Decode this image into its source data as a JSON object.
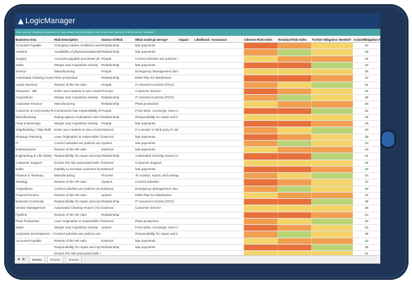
{
  "app": {
    "brand": "LogicManager"
  },
  "banner": "Use column heading comments for instructions and definitions; use drop-down options in fields where available",
  "columns": [
    "Business Area",
    "Risk Description",
    "Source of Risk",
    "What could go wrong?",
    "Impact",
    "Likelihood",
    "Assurance",
    "Inherent Risk Index",
    "Residual Risk Index",
    "Further Mitigation Needed?",
    "Action/Mitigation Plan"
  ],
  "rows": [
    {
      "area": "Accounts Payable",
      "desc": "Changing market conditions and events",
      "source": "Relationship",
      "wrong": "late payments",
      "inh": "",
      "res": "",
      "fur": "",
      "act": "42"
    },
    {
      "area": "Aviation",
      "desc": "Availability of physicians/specialists, rel",
      "source": "Relationship",
      "wrong": "late payments",
      "inh": "",
      "res": "",
      "fur": "",
      "act": "45"
    },
    {
      "area": "Surgery",
      "desc": "Accounts payable processes all invoices",
      "source": "People",
      "wrong": "Control activities are policies and proc",
      "inh": "",
      "res": "",
      "fur": "",
      "act": "46"
    },
    {
      "area": "Sales",
      "desc": "Merger and Acquisition activity",
      "source": "Relationship",
      "wrong": "late payments",
      "inh": "",
      "res": "",
      "fur": "",
      "act": "42"
    },
    {
      "area": "Service",
      "desc": "Manufacturing",
      "source": "People",
      "wrong": "Emergency Management Services (EMS)",
      "inh": "",
      "res": "",
      "fur": "",
      "act": "38"
    },
    {
      "area": "Automated Clearing House",
      "desc": "Plant production",
      "source": "Relationship",
      "wrong": "ERM Plan for Distribution",
      "inh": "",
      "res": "",
      "fur": "",
      "act": "42"
    },
    {
      "area": "Guest Services",
      "desc": "Review of the HR ratio",
      "source": "People",
      "wrong": "IT General Controls (ITGC)",
      "inh": "",
      "res": "",
      "fur": "",
      "act": "41"
    },
    {
      "area": "Resumes - DR",
      "desc": "Enter new markets in new countries",
      "source": "Process",
      "wrong": "Customer Service",
      "inh": "",
      "res": "",
      "fur": "",
      "act": "42"
    },
    {
      "area": "Acquisitions",
      "desc": "Merger and Acquisition activity",
      "source": "Relationship",
      "wrong": "IT General Controls (ITGC)",
      "inh": "",
      "res": "",
      "fur": "",
      "act": "38"
    },
    {
      "area": "Corporate Finance",
      "desc": "Manufacturing",
      "source": "Relationship",
      "wrong": "Plant production",
      "inh": "",
      "res": "",
      "fur": "",
      "act": "40"
    },
    {
      "area": "Customer & Community Rel",
      "desc": "Investments has responsibility for manag",
      "source": "People",
      "wrong": "Front desk, concierge, room service",
      "inh": "",
      "res": "",
      "fur": "",
      "act": "42"
    },
    {
      "area": "Manufacturing",
      "desc": "Rating agency evaluations and 10K/10Q",
      "source": "Relationship",
      "wrong": "Responsibility for repair and improvem",
      "inh": "",
      "res": "",
      "fur": "",
      "act": "36"
    },
    {
      "area": "Food & Beverage",
      "desc": "Merger and Acquisition activity",
      "source": "People",
      "wrong": "late payments",
      "inh": "",
      "res": "",
      "fur": "",
      "act": "33"
    },
    {
      "area": "Ship/Building / Ship Refit",
      "desc": "Enter new markets in new countries",
      "source": "External",
      "wrong": "If a vendor or third party is visiting",
      "inh": "",
      "res": "",
      "fur": "",
      "act": "40"
    },
    {
      "area": "Strategic Planning",
      "desc": "Loan Origination is responsible for under",
      "source": "External",
      "wrong": "late payments",
      "inh": "",
      "res": "",
      "fur": "",
      "act": "36"
    },
    {
      "area": "IT",
      "desc": "Control activities are policies and proce",
      "source": "System",
      "wrong": "late payments",
      "inh": "",
      "res": "",
      "fur": "",
      "act": "24"
    },
    {
      "area": "Entertainment",
      "desc": "Review of the HR ratio",
      "source": "External",
      "wrong": "late payments",
      "inh": "",
      "res": "",
      "fur": "",
      "act": "24"
    },
    {
      "area": "Engineering & Life Safety",
      "desc": "Responsibility for repair and improveme",
      "source": "Relationship",
      "wrong": "Automated Clearing House (ACH): Back",
      "inh": "",
      "res": "",
      "fur": "",
      "act": "21"
    },
    {
      "area": "Customer Support",
      "desc": "Ensure the risk associated with new bro",
      "source": "External",
      "wrong": "Customer Support",
      "inh": "",
      "res": "",
      "fur": "",
      "act": "25"
    },
    {
      "area": "Sales",
      "desc": "Inability to increase customer base and",
      "source": "External",
      "wrong": "late payments",
      "inh": "",
      "res": "",
      "fur": "",
      "act": "32"
    },
    {
      "area": "Finance & Treasury",
      "desc": "Manufacturing",
      "source": "Process",
      "wrong": "To monitor, report, and manage the ope",
      "inh": "",
      "res": "",
      "fur": "",
      "act": "24"
    },
    {
      "area": "Strategy",
      "desc": "Review of the HR ratio",
      "source": "System",
      "wrong": "Control activities",
      "inh": "",
      "res": "",
      "fur": "",
      "act": "24"
    },
    {
      "area": "Acquisitions",
      "desc": "Control activities are policies and proce",
      "source": "External",
      "wrong": "Emergency Management Services (EMS)",
      "inh": "",
      "res": "",
      "fur": "",
      "act": "40"
    },
    {
      "area": "Project/Function",
      "desc": "Review of the HR ratio",
      "source": "system",
      "wrong": "ERM Plan for Distribution",
      "inh": "",
      "res": "",
      "fur": "",
      "act": "42"
    },
    {
      "area": "Business Continuity",
      "desc": "Responsibility for repair and improveme",
      "source": "Relationship",
      "wrong": "IT General Controls (ITGC)",
      "inh": "",
      "res": "",
      "fur": "",
      "act": "38"
    },
    {
      "area": "Vendor Management",
      "desc": "Automated Clearing House (ACH): Back",
      "source": "External",
      "wrong": "Customer Service",
      "inh": "",
      "res": "",
      "fur": "",
      "act": "35"
    },
    {
      "area": "Pipeline",
      "desc": "Review of the HR ratio",
      "source": "Relationship",
      "wrong": "",
      "inh": "",
      "res": "",
      "fur": "",
      "act": "24"
    },
    {
      "area": "Plant Production",
      "desc": "Loan Origination is responsible for under",
      "source": "External",
      "wrong": "Plant production",
      "inh": "",
      "res": "",
      "fur": "",
      "act": "40"
    },
    {
      "area": "Sales",
      "desc": "Merger and Acquisition activity",
      "source": "system",
      "wrong": "Front desk, concierge, room service",
      "inh": "",
      "res": "",
      "fur": "",
      "act": "42"
    },
    {
      "area": "Corporate Development - E",
      "desc": "Control activities are policies and procedures that help ensure management",
      "source": "",
      "wrong": "Responsibility for repair and improvem",
      "inh": "",
      "res": "",
      "fur": "",
      "act": "36"
    },
    {
      "area": "Accounts Payable",
      "desc": "Review of the HR ratio",
      "source": "External",
      "wrong": "late payments",
      "inh": "",
      "res": "",
      "fur": "",
      "act": "42"
    },
    {
      "area": "",
      "desc": "Responsibility for repair and improvement",
      "source": "Relationship",
      "wrong": "late payments",
      "inh": "",
      "res": "",
      "fur": "",
      "act": "36"
    },
    {
      "area": "",
      "desc": "Ensure the risk associated with new broker appointment is consistent with management expectation",
      "source": "",
      "wrong": "",
      "inh": "",
      "res": "",
      "fur": "",
      "act": "41"
    }
  ],
  "sheets": [
    "Sheet1",
    "Sheet2",
    "Sheet3"
  ],
  "colors": {
    "frame": "#1e3557",
    "appbar": "#1b3f73",
    "banner": "#4aa6a8",
    "heat_red": "#e8703b",
    "heat_orange": "#f0a050",
    "heat_yellow": "#f4d46a",
    "heat_green": "#b9d477"
  }
}
